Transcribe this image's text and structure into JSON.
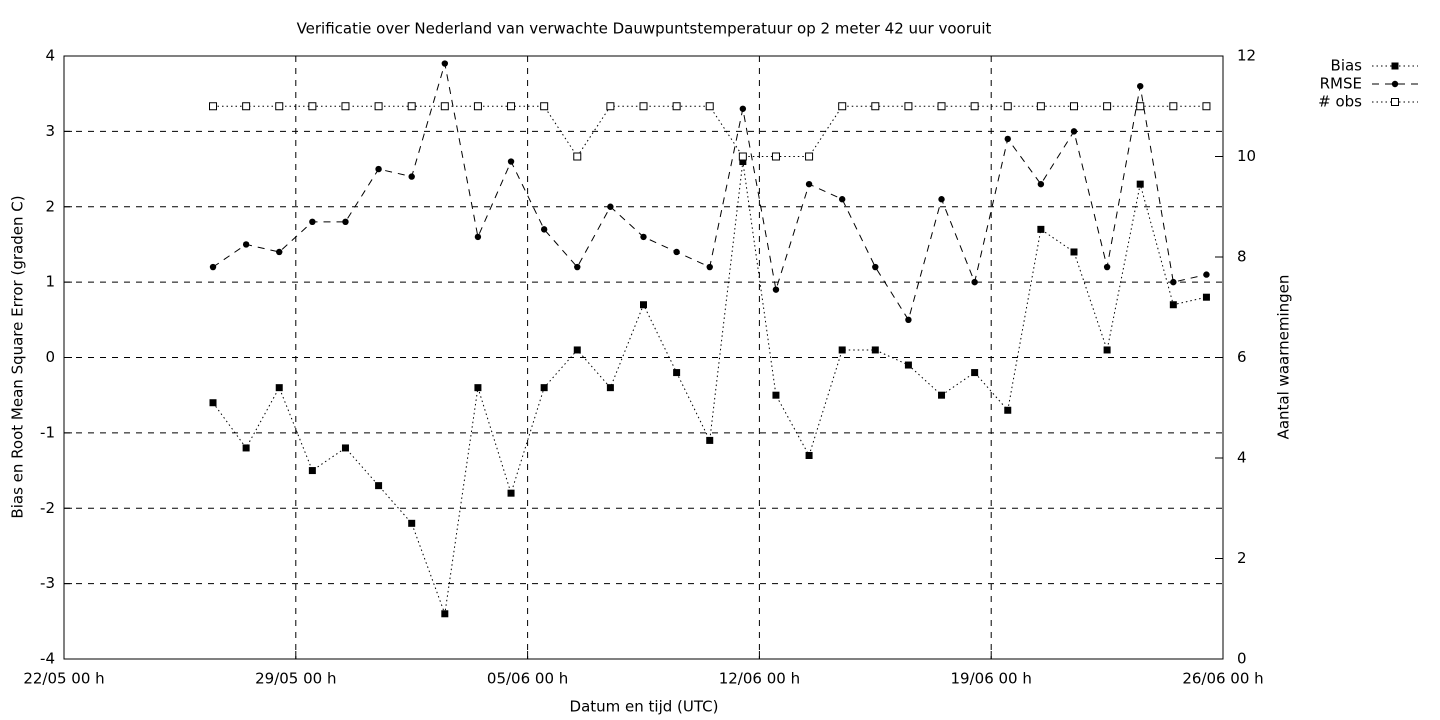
{
  "chart_data": {
    "type": "line",
    "title": "Verificatie over Nederland van verwachte Dauwpuntstemperatuur op 2 meter 42 uur vooruit",
    "xlabel": "Datum en tijd (UTC)",
    "ylabel": "Bias en Root Mean Square Error (graden C)",
    "y2label": "Aantal waarnemingen",
    "x": [
      "26/05 12 h",
      "27/05 12 h",
      "28/05 12 h",
      "29/05 12 h",
      "30/05 12 h",
      "31/05 12 h",
      "01/06 12 h",
      "02/06 12 h",
      "03/06 12 h",
      "04/06 12 h",
      "05/06 12 h",
      "06/06 12 h",
      "07/06 12 h",
      "08/06 12 h",
      "09/06 12 h",
      "10/06 12 h",
      "11/06 12 h",
      "12/06 12 h",
      "13/06 12 h",
      "14/06 12 h",
      "15/06 12 h",
      "16/06 12 h",
      "17/06 12 h",
      "18/06 12 h",
      "19/06 12 h",
      "20/06 12 h",
      "21/06 12 h",
      "22/06 12 h",
      "23/06 12 h",
      "24/06 12 h",
      "25/06 12 h"
    ],
    "xlim": [
      "22/05 00 h",
      "26/06 00 h"
    ],
    "xticks": [
      "22/05 00 h",
      "29/05 00 h",
      "05/06 00 h",
      "12/06 00 h",
      "19/06 00 h",
      "26/06 00 h"
    ],
    "ylim": [
      -4,
      4
    ],
    "yticks": [
      -4,
      -3,
      -2,
      -1,
      0,
      1,
      2,
      3,
      4
    ],
    "y2lim": [
      0,
      12
    ],
    "y2ticks": [
      0,
      2,
      4,
      6,
      8,
      10,
      12
    ],
    "grid": true,
    "legend": "top-right",
    "series": [
      {
        "name": "Bias",
        "color": "#000000",
        "line_style": "dotted",
        "marker": "square",
        "values": [
          -0.6,
          -1.2,
          -0.4,
          -1.5,
          -1.2,
          -1.7,
          -2.2,
          -3.4,
          -0.4,
          -1.8,
          -0.4,
          0.1,
          -0.4,
          0.7,
          -0.2,
          -1.1,
          2.6,
          -0.5,
          -1.3,
          0.1,
          0.1,
          -0.1,
          -0.5,
          -0.2,
          -0.7,
          1.7,
          1.4,
          0.1,
          2.3,
          0.7,
          0.8
        ]
      },
      {
        "name": "RMSE",
        "color": "#000000",
        "line_style": "dashed",
        "marker": "circle",
        "values": [
          1.2,
          1.5,
          1.4,
          1.8,
          1.8,
          2.5,
          2.4,
          3.9,
          1.6,
          2.6,
          1.7,
          1.2,
          2.0,
          1.6,
          1.4,
          1.2,
          3.3,
          0.9,
          2.3,
          2.1,
          1.2,
          0.5,
          2.1,
          1.0,
          2.9,
          2.3,
          3.0,
          1.2,
          3.6,
          1.0,
          1.1
        ]
      },
      {
        "name": "# obs",
        "color": "#000000",
        "line_style": "dotted",
        "marker": "open-square",
        "axis": "y2",
        "values": [
          11,
          11,
          11,
          11,
          11,
          11,
          11,
          11,
          11,
          11,
          11,
          10,
          11,
          11,
          11,
          11,
          10,
          10,
          10,
          11,
          11,
          11,
          11,
          11,
          11,
          11,
          11,
          11,
          11,
          11,
          11
        ]
      }
    ]
  }
}
